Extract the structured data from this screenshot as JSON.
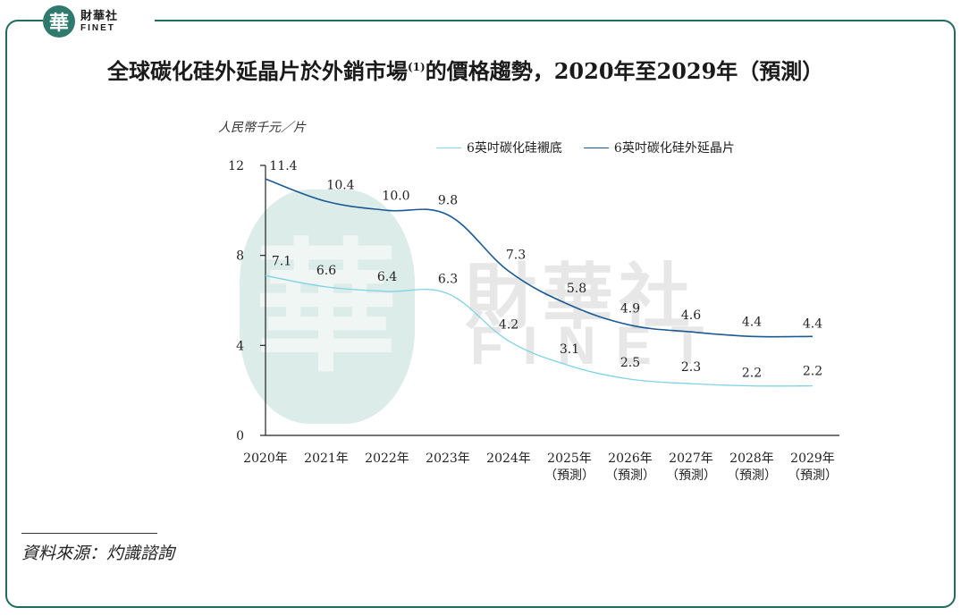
{
  "brand": {
    "badge_char": "華",
    "name_cn": "財華社",
    "name_en": "FINET"
  },
  "title_main": "全球碳化硅外延晶片於外銷市場",
  "title_sup": "(1)",
  "title_rest": "的價格趨勢，2020年至2029年（預測）",
  "source": "資料來源：灼識諮詢",
  "chart_data": {
    "type": "line",
    "ylabel": "人民幣千元／片",
    "xlabel": "",
    "ylim": [
      0,
      12
    ],
    "yticks": [
      0,
      4,
      8,
      12
    ],
    "categories": [
      {
        "line1": "2020年",
        "line2": ""
      },
      {
        "line1": "2021年",
        "line2": ""
      },
      {
        "line1": "2022年",
        "line2": ""
      },
      {
        "line1": "2023年",
        "line2": ""
      },
      {
        "line1": "2024年",
        "line2": ""
      },
      {
        "line1": "2025年",
        "line2": "（預測）"
      },
      {
        "line1": "2026年",
        "line2": "（預測）"
      },
      {
        "line1": "2027年",
        "line2": "（預測）"
      },
      {
        "line1": "2028年",
        "line2": "（預測）"
      },
      {
        "line1": "2029年",
        "line2": "（預測）"
      }
    ],
    "series": [
      {
        "name": "6英吋碳化硅襯底",
        "color": "#7fd3e6",
        "values": [
          7.1,
          6.6,
          6.4,
          6.3,
          4.2,
          3.1,
          2.5,
          2.3,
          2.2,
          2.2
        ],
        "labels": [
          "7.1",
          "6.6",
          "6.4",
          "6.3",
          "4.2",
          "3.1",
          "2.5",
          "2.3",
          "2.2",
          "2.2"
        ]
      },
      {
        "name": "6英吋碳化硅外延晶片",
        "color": "#1b5a94",
        "values": [
          11.4,
          10.4,
          10.0,
          9.8,
          7.3,
          5.8,
          4.9,
          4.6,
          4.4,
          4.4
        ],
        "labels": [
          "11.4",
          "10.4",
          "10.0",
          "9.8",
          "7.3",
          "5.8",
          "4.9",
          "4.6",
          "4.4",
          "4.4"
        ]
      }
    ],
    "legend_position": "top-right",
    "grid": false
  }
}
